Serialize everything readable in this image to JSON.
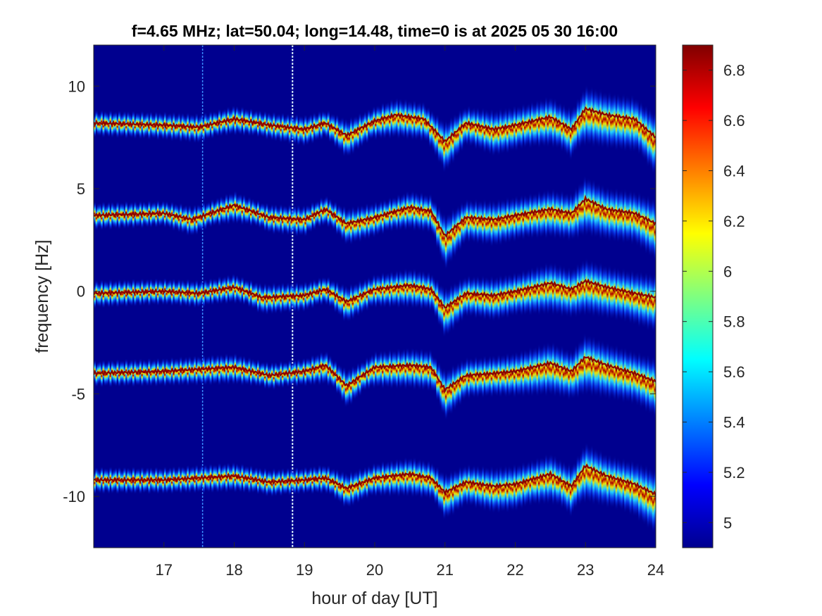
{
  "chart_data": {
    "type": "heatmap",
    "title": "f=4.65 MHz;  lat=50.04; long=14.48, time=0 is at 2025 05 30 16:00",
    "xlabel": "hour of day [UT]",
    "ylabel": "frequency [Hz]",
    "xlim": [
      16,
      24
    ],
    "ylim": [
      -12.5,
      12
    ],
    "xticks": [
      17,
      18,
      19,
      20,
      21,
      22,
      23,
      24
    ],
    "yticks": [
      10,
      5,
      0,
      -5,
      -10
    ],
    "colorbar": {
      "colormap": "jet",
      "clim": [
        4.9,
        6.9
      ],
      "ticks": [
        6.8,
        6.6,
        6.4,
        6.2,
        6,
        5.8,
        5.6,
        5.4,
        5.2,
        5
      ]
    },
    "background_color": "#00008f",
    "series": [
      {
        "center_hz": 8.2,
        "points": [
          [
            16,
            8.2
          ],
          [
            17,
            8.1
          ],
          [
            17.5,
            8.0
          ],
          [
            18,
            8.4
          ],
          [
            18.5,
            8.1
          ],
          [
            19,
            7.9
          ],
          [
            19.3,
            8.2
          ],
          [
            19.6,
            7.6
          ],
          [
            20,
            8.3
          ],
          [
            20.3,
            8.6
          ],
          [
            20.7,
            8.4
          ],
          [
            21,
            7.3
          ],
          [
            21.3,
            8.2
          ],
          [
            21.7,
            7.9
          ],
          [
            22,
            8.1
          ],
          [
            22.5,
            8.5
          ],
          [
            22.8,
            7.9
          ],
          [
            23,
            8.9
          ],
          [
            23.3,
            8.6
          ],
          [
            23.7,
            8.4
          ],
          [
            24,
            7.5
          ]
        ]
      },
      {
        "center_hz": 3.8,
        "points": [
          [
            16,
            3.7
          ],
          [
            17,
            3.8
          ],
          [
            17.4,
            3.5
          ],
          [
            18,
            4.2
          ],
          [
            18.5,
            3.6
          ],
          [
            19,
            3.5
          ],
          [
            19.3,
            4.0
          ],
          [
            19.6,
            3.3
          ],
          [
            20,
            3.6
          ],
          [
            20.5,
            4.1
          ],
          [
            20.8,
            3.9
          ],
          [
            21,
            2.7
          ],
          [
            21.3,
            3.6
          ],
          [
            21.7,
            3.5
          ],
          [
            22,
            3.7
          ],
          [
            22.5,
            4.0
          ],
          [
            22.8,
            3.8
          ],
          [
            23,
            4.5
          ],
          [
            23.3,
            4.0
          ],
          [
            23.7,
            3.8
          ],
          [
            24,
            3.3
          ]
        ]
      },
      {
        "center_hz": 0,
        "points": [
          [
            16,
            -0.1
          ],
          [
            17,
            0.0
          ],
          [
            17.5,
            -0.1
          ],
          [
            18,
            0.2
          ],
          [
            18.4,
            -0.3
          ],
          [
            19,
            -0.2
          ],
          [
            19.3,
            0.1
          ],
          [
            19.6,
            -0.5
          ],
          [
            20,
            0.1
          ],
          [
            20.5,
            0.3
          ],
          [
            20.8,
            0.1
          ],
          [
            21,
            -0.8
          ],
          [
            21.3,
            -0.1
          ],
          [
            21.7,
            -0.2
          ],
          [
            22,
            0.0
          ],
          [
            22.5,
            0.4
          ],
          [
            22.8,
            0.1
          ],
          [
            23,
            0.5
          ],
          [
            23.3,
            0.2
          ],
          [
            23.7,
            -0.1
          ],
          [
            24,
            -0.3
          ]
        ]
      },
      {
        "center_hz": -4,
        "points": [
          [
            16,
            -4.0
          ],
          [
            17,
            -3.9
          ],
          [
            17.5,
            -3.8
          ],
          [
            18,
            -3.7
          ],
          [
            18.5,
            -4.1
          ],
          [
            19,
            -3.9
          ],
          [
            19.3,
            -3.6
          ],
          [
            19.6,
            -4.6
          ],
          [
            20,
            -3.7
          ],
          [
            20.5,
            -3.6
          ],
          [
            20.8,
            -3.7
          ],
          [
            21,
            -4.8
          ],
          [
            21.3,
            -4.1
          ],
          [
            21.7,
            -4.0
          ],
          [
            22,
            -3.9
          ],
          [
            22.5,
            -3.5
          ],
          [
            22.8,
            -3.9
          ],
          [
            23,
            -3.2
          ],
          [
            23.3,
            -3.6
          ],
          [
            23.7,
            -4.0
          ],
          [
            24,
            -4.4
          ]
        ]
      },
      {
        "center_hz": -9.2,
        "points": [
          [
            16,
            -9.2
          ],
          [
            17,
            -9.2
          ],
          [
            17.5,
            -9.1
          ],
          [
            18,
            -9.0
          ],
          [
            18.5,
            -9.3
          ],
          [
            19,
            -9.2
          ],
          [
            19.3,
            -9.1
          ],
          [
            19.6,
            -9.6
          ],
          [
            20,
            -9.1
          ],
          [
            20.5,
            -8.9
          ],
          [
            20.8,
            -9.1
          ],
          [
            21,
            -9.8
          ],
          [
            21.3,
            -9.3
          ],
          [
            21.7,
            -9.5
          ],
          [
            22,
            -9.4
          ],
          [
            22.5,
            -8.9
          ],
          [
            22.8,
            -9.5
          ],
          [
            23,
            -8.5
          ],
          [
            23.3,
            -9.0
          ],
          [
            23.7,
            -9.4
          ],
          [
            24,
            -9.9
          ]
        ]
      }
    ],
    "vertical_artifacts_hour": [
      17.55,
      18.83
    ]
  }
}
